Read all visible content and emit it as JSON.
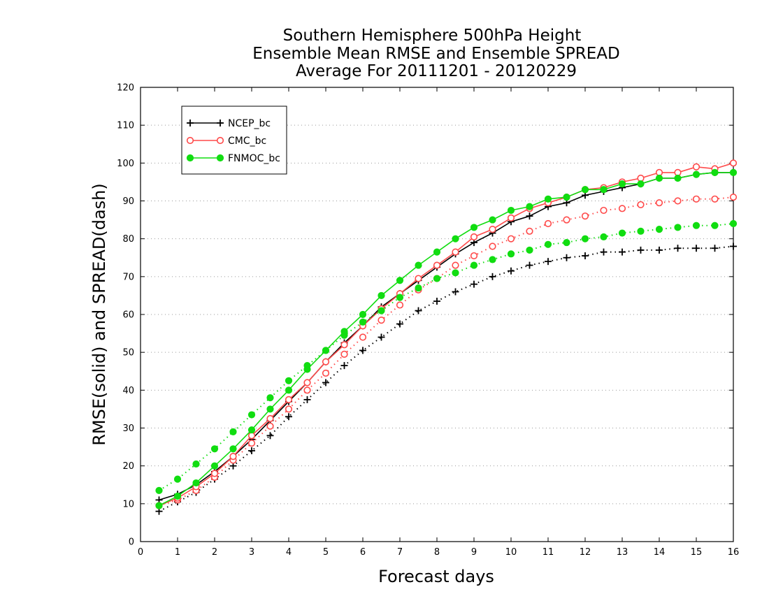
{
  "chart_data": {
    "type": "line",
    "title": [
      "Southern Hemisphere 500hPa Height",
      "Ensemble Mean RMSE and Ensemble SPREAD",
      "Average For 20111201 - 20120229"
    ],
    "xlabel": "Forecast days",
    "ylabel": "RMSE(solid) and SPREAD(dash)",
    "xlim": [
      0,
      16
    ],
    "ylim": [
      0,
      120
    ],
    "xticks": [
      0,
      1,
      2,
      3,
      4,
      5,
      6,
      7,
      8,
      9,
      10,
      11,
      12,
      13,
      14,
      15,
      16
    ],
    "yticks": [
      0,
      10,
      20,
      30,
      40,
      50,
      60,
      70,
      80,
      90,
      100,
      110,
      120
    ],
    "grid": "horizontal dotted",
    "legend_position": "top-left",
    "x": [
      0.5,
      1.0,
      1.5,
      2.0,
      2.5,
      3.0,
      3.5,
      4.0,
      4.5,
      5.0,
      5.5,
      6.0,
      6.5,
      7.0,
      7.5,
      8.0,
      8.5,
      9.0,
      9.5,
      10.0,
      10.5,
      11.0,
      11.5,
      12.0,
      12.5,
      13.0,
      13.5,
      14.0,
      14.5,
      15.0,
      15.5,
      16.0
    ],
    "series": [
      {
        "name": "NCEP_bc",
        "color": "#000000",
        "marker": "plus",
        "rmse": [
          11.0,
          12.5,
          15.0,
          18.5,
          22.5,
          27.0,
          32.0,
          37.0,
          42.0,
          47.5,
          52.5,
          57.0,
          62.0,
          65.5,
          69.0,
          72.5,
          76.0,
          79.0,
          81.5,
          84.5,
          86.0,
          88.5,
          89.5,
          91.5,
          92.5,
          93.5,
          94.5,
          96.0,
          96.0,
          97.0,
          97.5,
          97.5
        ],
        "spread": [
          8.0,
          10.5,
          13.0,
          16.5,
          20.0,
          24.0,
          28.0,
          33.0,
          37.5,
          42.0,
          46.5,
          50.5,
          54.0,
          57.5,
          61.0,
          63.5,
          66.0,
          68.0,
          70.0,
          71.5,
          73.0,
          74.0,
          75.0,
          75.5,
          76.5,
          76.5,
          77.0,
          77.0,
          77.5,
          77.5,
          77.5,
          78.0
        ]
      },
      {
        "name": "CMC_bc",
        "color": "#ff4a4a",
        "marker": "open-circle",
        "rmse": [
          9.5,
          11.5,
          14.5,
          18.0,
          22.5,
          28.0,
          32.5,
          37.5,
          42.0,
          47.5,
          52.0,
          57.0,
          61.5,
          65.5,
          69.5,
          73.0,
          76.5,
          80.5,
          82.5,
          85.5,
          88.0,
          89.5,
          91.0,
          93.0,
          93.5,
          95.0,
          96.0,
          97.5,
          97.5,
          99.0,
          98.5,
          100.0
        ],
        "spread": [
          9.5,
          11.0,
          13.5,
          17.0,
          21.5,
          26.0,
          30.5,
          35.0,
          40.0,
          44.5,
          49.5,
          54.0,
          58.5,
          62.5,
          66.5,
          69.5,
          73.0,
          75.5,
          78.0,
          80.0,
          82.0,
          84.0,
          85.0,
          86.0,
          87.5,
          88.0,
          89.0,
          89.5,
          90.0,
          90.5,
          90.5,
          91.0
        ]
      },
      {
        "name": "FNMOC_bc",
        "color": "#11dd11",
        "marker": "filled-circle",
        "rmse": [
          9.5,
          12.0,
          15.5,
          20.0,
          24.5,
          29.5,
          35.0,
          40.0,
          45.5,
          50.5,
          55.5,
          60.0,
          65.0,
          69.0,
          73.0,
          76.5,
          80.0,
          83.0,
          85.0,
          87.5,
          88.5,
          90.5,
          91.0,
          93.0,
          93.0,
          94.5,
          94.5,
          96.0,
          96.0,
          97.0,
          97.5,
          97.5
        ],
        "spread": [
          13.5,
          16.5,
          20.5,
          24.5,
          29.0,
          33.5,
          38.0,
          42.5,
          46.5,
          50.5,
          54.5,
          58.0,
          61.0,
          64.5,
          67.0,
          69.5,
          71.0,
          73.0,
          74.5,
          76.0,
          77.0,
          78.5,
          79.0,
          80.0,
          80.5,
          81.5,
          82.0,
          82.5,
          83.0,
          83.5,
          83.5,
          84.0
        ]
      }
    ]
  }
}
